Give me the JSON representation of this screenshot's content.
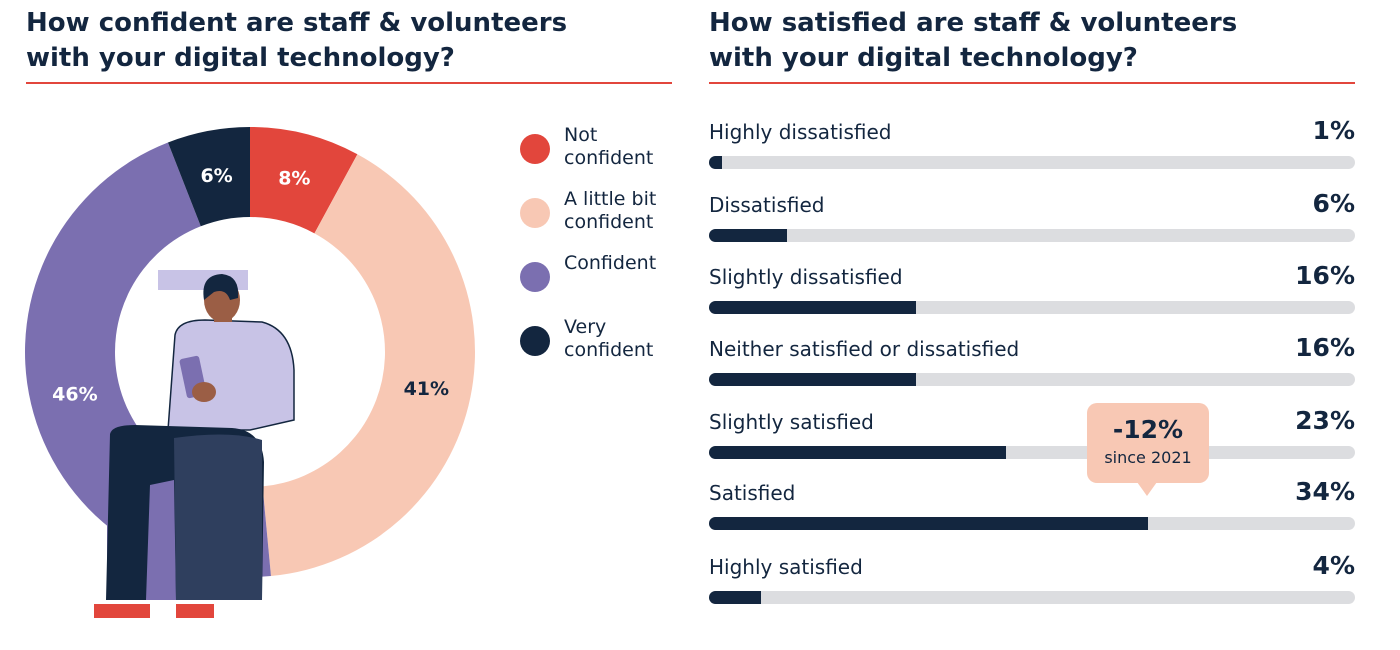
{
  "colors": {
    "rule": "#e2463c",
    "navy": "#13263f",
    "red": "#e2463c",
    "peach": "#f8c8b4",
    "purple": "#7b6fb0",
    "track": "#dcdde0"
  },
  "illustration": "person-sitting-using-phone",
  "chart_data": [
    {
      "type": "pie",
      "title": "How confident are staff & volunteers\nwith your digital technology?",
      "categories": [
        "Not confident",
        "A little bit confident",
        "Confident",
        "Very confident"
      ],
      "values": [
        8,
        41,
        46,
        6
      ],
      "labels": [
        "8%",
        "41%",
        "46%",
        "6%"
      ],
      "legend": [
        {
          "label": "Not\nconfident",
          "color": "#e2463c"
        },
        {
          "label": "A little bit\nconfident",
          "color": "#f8c8b4"
        },
        {
          "label": "Confident",
          "color": "#7b6fb0"
        },
        {
          "label": "Very\nconfident",
          "color": "#13263f"
        }
      ],
      "legend_position": "right"
    },
    {
      "type": "bar",
      "orientation": "horizontal",
      "title": "How satisfied are staff & volunteers\nwith your digital technology?",
      "categories": [
        "Highly dissatisfied",
        "Dissatisfied",
        "Slightly dissatisfied",
        "Neither satisfied or dissatisfied",
        "Slightly satisfied",
        "Satisfied",
        "Highly satisfied"
      ],
      "values": [
        1,
        6,
        16,
        16,
        23,
        34,
        4
      ],
      "value_labels": [
        "1%",
        "6%",
        "16%",
        "16%",
        "23%",
        "34%",
        "4%"
      ],
      "xlim": [
        0,
        50
      ],
      "annotation": {
        "value": "-12%",
        "text": "since 2021",
        "category": "Satisfied"
      }
    }
  ]
}
